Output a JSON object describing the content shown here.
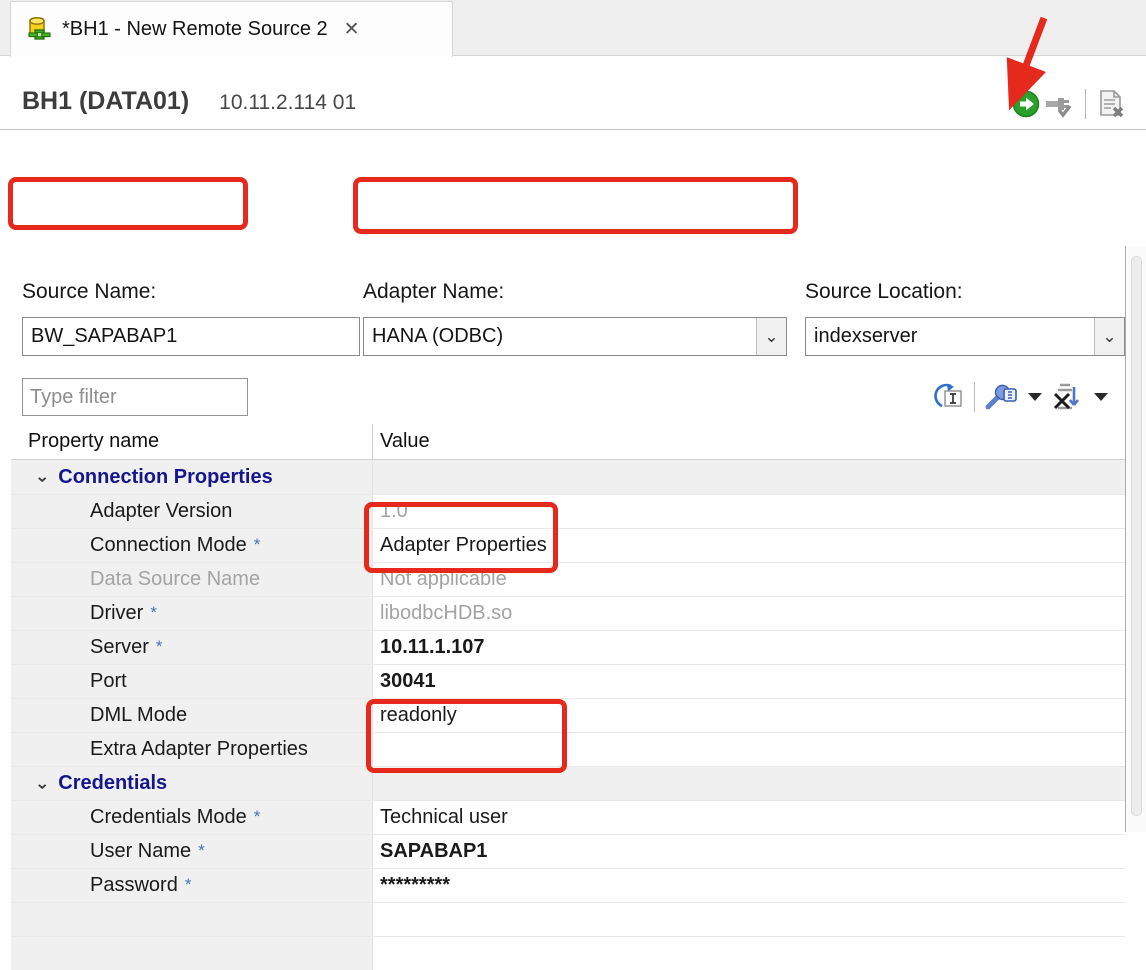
{
  "tab": {
    "title": "*BH1 - New Remote Source 2",
    "close_glyph": "✕"
  },
  "header": {
    "title": "BH1 (DATA01)",
    "subtitle": "10.11.2.114 01"
  },
  "header_toolbar": {
    "icons": [
      "execute-icon",
      "test-connection-icon",
      "delete-icon"
    ]
  },
  "form": {
    "fields": [
      {
        "label": "Source Name:",
        "value": "BW_SAPABAP1",
        "type": "input",
        "highlighted": true
      },
      {
        "label": "Adapter Name:",
        "value": "HANA (ODBC)",
        "type": "combo",
        "highlighted": true
      },
      {
        "label": "Source Location:",
        "value": "indexserver",
        "type": "combo",
        "highlighted": false
      }
    ]
  },
  "filter": {
    "placeholder": "Type filter"
  },
  "filter_toolbar": {
    "icons": [
      "restore-default-icon",
      "configure-properties-icon",
      "sort-disabled-icon"
    ]
  },
  "table": {
    "columns": [
      "Property name",
      "Value"
    ],
    "rows": [
      {
        "type": "category",
        "name": "Connection Properties"
      },
      {
        "type": "prop",
        "name": "Adapter Version",
        "required": false,
        "name_muted": false,
        "value": "1.0",
        "value_muted": true,
        "value_bold": false
      },
      {
        "type": "prop",
        "name": "Connection Mode",
        "required": true,
        "name_muted": false,
        "value": "Adapter Properties",
        "value_muted": false,
        "value_bold": false
      },
      {
        "type": "prop",
        "name": "Data Source Name",
        "required": false,
        "name_muted": true,
        "value": "Not applicable",
        "value_muted": true,
        "value_bold": false
      },
      {
        "type": "prop",
        "name": "Driver",
        "required": true,
        "name_muted": false,
        "value": "libodbcHDB.so",
        "value_muted": true,
        "value_bold": false
      },
      {
        "type": "prop",
        "name": "Server",
        "required": true,
        "name_muted": false,
        "value": "10.11.1.107",
        "value_muted": false,
        "value_bold": true
      },
      {
        "type": "prop",
        "name": "Port",
        "required": false,
        "name_muted": false,
        "value": "30041",
        "value_muted": false,
        "value_bold": true
      },
      {
        "type": "prop",
        "name": "DML Mode",
        "required": false,
        "name_muted": false,
        "value": "readonly",
        "value_muted": false,
        "value_bold": false
      },
      {
        "type": "prop",
        "name": "Extra Adapter Properties",
        "required": false,
        "name_muted": false,
        "value": "",
        "value_muted": false,
        "value_bold": false
      },
      {
        "type": "category",
        "name": "Credentials"
      },
      {
        "type": "prop",
        "name": "Credentials Mode",
        "required": true,
        "name_muted": false,
        "value": "Technical user",
        "value_muted": false,
        "value_bold": false
      },
      {
        "type": "prop",
        "name": "User Name",
        "required": true,
        "name_muted": false,
        "value": "SAPABAP1",
        "value_muted": false,
        "value_bold": true
      },
      {
        "type": "prop",
        "name": "Password",
        "required": true,
        "name_muted": false,
        "value": "*********",
        "value_muted": false,
        "value_bold": true
      },
      {
        "type": "empty"
      },
      {
        "type": "empty"
      }
    ]
  },
  "icons": {
    "expander_glyph": "⌄",
    "combo_chevron_glyph": "⌄",
    "required_glyph": "*"
  },
  "colors": {
    "annotation_red": "#e52a1d",
    "category_navy": "#15158d",
    "execute_green": "#2aa02a",
    "muted_gray": "#a3a3a3",
    "name_column_bg": "#f0f0f0"
  }
}
